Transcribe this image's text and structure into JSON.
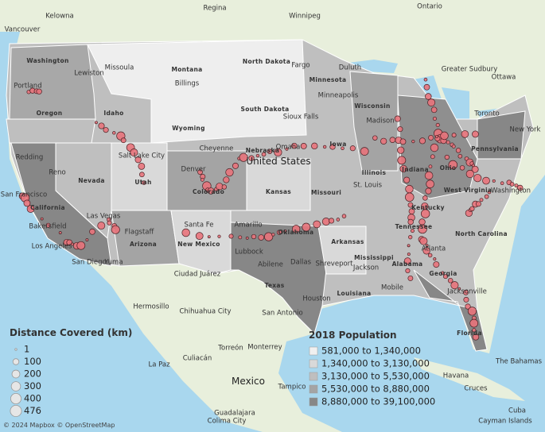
{
  "map_labels": [
    "Regina",
    "Winnipeg",
    "Ontario",
    "Kelowna",
    "Vancouver",
    "Washington",
    "Lewiston",
    "Missoula",
    "Montana",
    "Billings",
    "North Dakota",
    "Fargo",
    "Minnesota",
    "Duluth",
    "Portland",
    "Oregon",
    "Idaho",
    "Wyoming",
    "South Dakota",
    "Sioux Falls",
    "Minneapolis",
    "Wisconsin",
    "Madison",
    "Toronto",
    "Ottawa",
    "Greater Sudbury",
    "New York",
    "Redding",
    "Reno",
    "Nevada",
    "Utah",
    "Salt Lake City",
    "Cheyenne",
    "Denver",
    "Colorado",
    "Nebraska",
    "Omaha",
    "Iowa",
    "Kansas",
    "Illinois",
    "Indiana",
    "Ohio",
    "Pennsylvania",
    "West Virginia",
    "Washington",
    "St. Louis",
    "Missouri",
    "Kentucky",
    "San Francisco",
    "California",
    "Las Vegas",
    "Bakersfield",
    "Flagstaff",
    "Arizona",
    "Santa Fe",
    "New Mexico",
    "Amarillo",
    "Oklahoma",
    "Arkansas",
    "Tennessee",
    "North Carolina",
    "Los Angeles",
    "San Diego",
    "Yuma",
    "Lubbock",
    "Abilene",
    "Dallas",
    "Shreveport",
    "Mississippi",
    "Jackson",
    "Alabama",
    "Atlanta",
    "Georgia",
    "Ciudad Juárez",
    "Texas",
    "Louisiana",
    "Mobile",
    "Houston",
    "Jacksonville",
    "San Antonio",
    "Hermosillo",
    "Chihuahua City",
    "Monterrey",
    "Torreón",
    "Culiacán",
    "La Paz",
    "Tampico",
    "Havana",
    "The Bahamas",
    "Cruces",
    "Cuba",
    "Guadalajara",
    "Colima City",
    "Cayman Islands",
    "Florida"
  ],
  "country_labels": [
    "United States",
    "Mexico"
  ],
  "size_legend": {
    "title": "Distance Covered (km)",
    "items": [
      1,
      100,
      200,
      300,
      400,
      476
    ]
  },
  "color_legend": {
    "title": "2018 Population",
    "items": [
      {
        "label": "581,000 to 1,340,000",
        "color": "#f0f0f0"
      },
      {
        "label": "1,340,000 to 3,130,000",
        "color": "#d9d9d9"
      },
      {
        "label": "3,130,000 to 5,530,000",
        "color": "#bfbfbf"
      },
      {
        "label": "5,530,000 to 8,880,000",
        "color": "#a4a4a4"
      },
      {
        "label": "8,880,000 to 39,100,000",
        "color": "#878787"
      }
    ]
  },
  "attribution": "© 2024 Mapbox © OpenStreetMap"
}
